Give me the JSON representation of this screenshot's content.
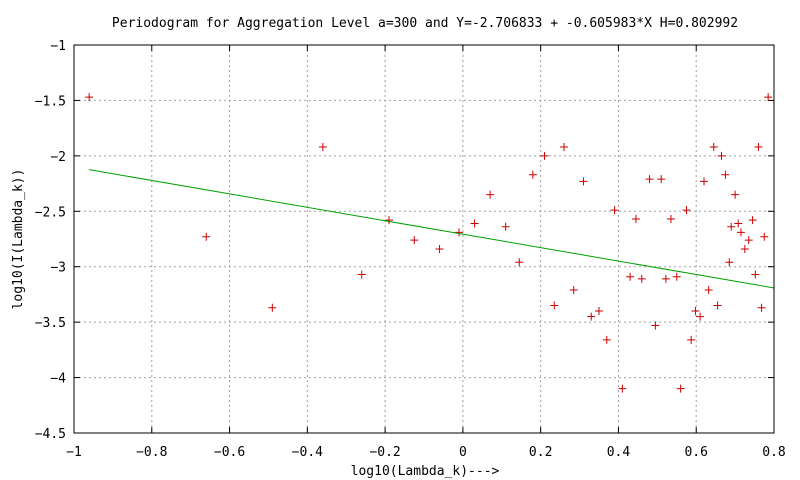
{
  "chart_data": {
    "type": "scatter",
    "title": "Periodogram for Aggregation Level a=300 and Y=-2.706833 + -0.605983*X H=0.802992",
    "xlabel": "log10(Lambda_k)--->",
    "ylabel": "log10(I(Lambda_k))",
    "xlim": [
      -1,
      0.8
    ],
    "ylim": [
      -4.5,
      -1
    ],
    "x_ticks": [
      -1,
      -0.8,
      -0.6,
      -0.4,
      -0.2,
      0,
      0.2,
      0.4,
      0.6,
      0.8
    ],
    "x_tick_labels": [
      "−1",
      "−0.8",
      "−0.6",
      "−0.4",
      "−0.2",
      "0",
      "0.2",
      "0.4",
      "0.6",
      "0.8"
    ],
    "y_ticks": [
      -4.5,
      -4,
      -3.5,
      -3,
      -2.5,
      -2,
      -1.5,
      -1
    ],
    "y_tick_labels": [
      "−4.5",
      "−4",
      "−3.5",
      "−3",
      "−2.5",
      "−2",
      "−1.5",
      "−1"
    ],
    "grid": true,
    "series": [
      {
        "kind": "points",
        "marker": "+",
        "color": "#cc0000",
        "points": [
          [
            -0.961,
            -1.47
          ],
          [
            -0.66,
            -2.73
          ],
          [
            -0.49,
            -3.37
          ],
          [
            -0.36,
            -1.92
          ],
          [
            -0.26,
            -3.07
          ],
          [
            -0.19,
            -2.58
          ],
          [
            -0.125,
            -2.76
          ],
          [
            -0.06,
            -2.84
          ],
          [
            -0.01,
            -2.69
          ],
          [
            0.03,
            -2.61
          ],
          [
            0.07,
            -2.35
          ],
          [
            0.11,
            -2.64
          ],
          [
            0.145,
            -2.96
          ],
          [
            0.18,
            -2.17
          ],
          [
            0.21,
            -2.0
          ],
          [
            0.235,
            -3.35
          ],
          [
            0.26,
            -1.92
          ],
          [
            0.285,
            -3.21
          ],
          [
            0.31,
            -2.23
          ],
          [
            0.33,
            -3.45
          ],
          [
            0.35,
            -3.4
          ],
          [
            0.37,
            -3.66
          ],
          [
            0.39,
            -2.49
          ],
          [
            0.41,
            -4.1
          ],
          [
            0.43,
            -3.09
          ],
          [
            0.445,
            -2.57
          ],
          [
            0.46,
            -3.11
          ],
          [
            0.48,
            -2.21
          ],
          [
            0.495,
            -3.53
          ],
          [
            0.51,
            -2.21
          ],
          [
            0.522,
            -3.11
          ],
          [
            0.535,
            -2.57
          ],
          [
            0.55,
            -3.09
          ],
          [
            0.56,
            -4.1
          ],
          [
            0.575,
            -2.49
          ],
          [
            0.587,
            -3.66
          ],
          [
            0.598,
            -3.4
          ],
          [
            0.61,
            -3.45
          ],
          [
            0.62,
            -2.23
          ],
          [
            0.632,
            -3.21
          ],
          [
            0.645,
            -1.92
          ],
          [
            0.655,
            -3.35
          ],
          [
            0.665,
            -2.0
          ],
          [
            0.675,
            -2.17
          ],
          [
            0.685,
            -2.96
          ],
          [
            0.69,
            -2.64
          ],
          [
            0.7,
            -2.35
          ],
          [
            0.708,
            -2.61
          ],
          [
            0.715,
            -2.69
          ],
          [
            0.725,
            -2.84
          ],
          [
            0.735,
            -2.76
          ],
          [
            0.745,
            -2.58
          ],
          [
            0.752,
            -3.07
          ],
          [
            0.76,
            -1.92
          ],
          [
            0.768,
            -3.37
          ],
          [
            0.775,
            -2.73
          ],
          [
            0.785,
            -1.47
          ]
        ]
      },
      {
        "kind": "line",
        "color": "#00a000",
        "x": [
          -0.961,
          0.8
        ],
        "y": [
          -2.1245,
          -3.1916
        ]
      }
    ]
  }
}
